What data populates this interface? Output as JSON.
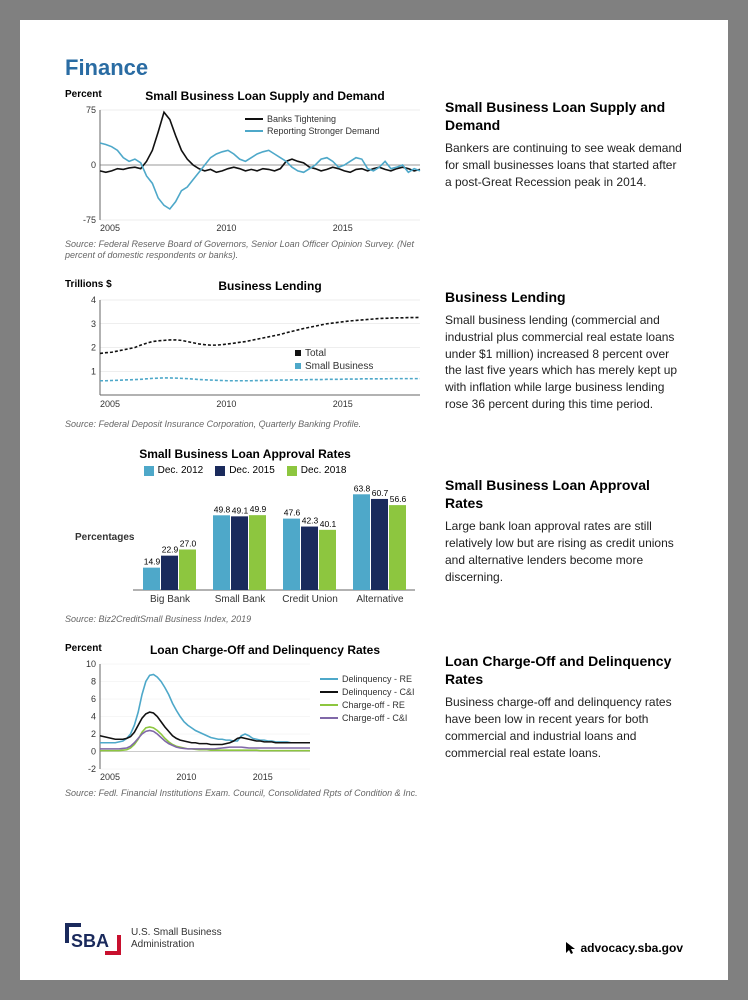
{
  "page_title": "Finance",
  "colors": {
    "title": "#2a6ca3",
    "black": "#111111",
    "blue": "#4ea8c9",
    "navy": "#1a2a5c",
    "green": "#8dc63f",
    "purple": "#8068a8",
    "grid": "#cccccc",
    "red": "#c8102e"
  },
  "chart1": {
    "title": "Small Business Loan Supply and Demand",
    "y_label": "Percent",
    "y_ticks": [
      -75,
      0,
      75
    ],
    "x_ticks": [
      "2005",
      "2010",
      "2015"
    ],
    "legend": [
      {
        "label": "Banks Tightening",
        "color": "#111111"
      },
      {
        "label": "Reporting Stronger Demand",
        "color": "#4ea8c9"
      }
    ],
    "banks": [
      -8,
      -10,
      -8,
      -5,
      -6,
      -4,
      -3,
      -5,
      5,
      20,
      45,
      72,
      62,
      40,
      20,
      8,
      0,
      -5,
      -8,
      -6,
      -10,
      -8,
      -5,
      -3,
      -5,
      -8,
      -6,
      -8,
      -5,
      -6,
      -8,
      -5,
      5,
      8,
      5,
      3,
      -3,
      -5,
      -8,
      -6,
      -3,
      -5,
      -8,
      -10,
      -6,
      -5,
      -8,
      -5,
      -3,
      -6,
      -8,
      -5,
      -3,
      -5,
      -8,
      -6
    ],
    "demand": [
      30,
      28,
      25,
      20,
      10,
      5,
      8,
      3,
      -15,
      -25,
      -45,
      -55,
      -60,
      -50,
      -35,
      -30,
      -20,
      -10,
      0,
      10,
      15,
      18,
      20,
      15,
      8,
      5,
      10,
      15,
      18,
      20,
      15,
      10,
      5,
      -3,
      -8,
      -10,
      -5,
      0,
      8,
      10,
      5,
      -3,
      0,
      5,
      10,
      8,
      -5,
      -8,
      -3,
      5,
      -5,
      -3,
      0,
      -10,
      -5,
      -8
    ],
    "source": "Source: Federal Reserve Board of Governors, Senior Loan Officer Opinion Survey. (Net percent of domestic respondents or banks).",
    "heading": "Small Business Loan Supply and Demand",
    "body": "Bankers are continuing to see weak demand for small businesses loans that started after a post-Great Recession peak in 2014."
  },
  "chart2": {
    "title": "Business Lending",
    "y_label": "Trillions $",
    "y_ticks": [
      1,
      2,
      3,
      4
    ],
    "x_ticks": [
      "2005",
      "2010",
      "2015"
    ],
    "legend": [
      {
        "label": "Total",
        "color": "#111111"
      },
      {
        "label": "Small Business",
        "color": "#4ea8c9"
      }
    ],
    "total": [
      1.75,
      1.78,
      1.8,
      1.85,
      1.9,
      1.95,
      2.0,
      2.1,
      2.18,
      2.25,
      2.28,
      2.3,
      2.32,
      2.32,
      2.3,
      2.25,
      2.2,
      2.15,
      2.12,
      2.1,
      2.1,
      2.12,
      2.15,
      2.18,
      2.22,
      2.25,
      2.3,
      2.35,
      2.4,
      2.45,
      2.5,
      2.55,
      2.62,
      2.68,
      2.74,
      2.8,
      2.85,
      2.9,
      2.95,
      3.0,
      3.03,
      3.06,
      3.09,
      3.12,
      3.14,
      3.16,
      3.18,
      3.2,
      3.22,
      3.23,
      3.24,
      3.25,
      3.25,
      3.26,
      3.26,
      3.27
    ],
    "small": [
      0.6,
      0.6,
      0.61,
      0.62,
      0.63,
      0.64,
      0.65,
      0.66,
      0.68,
      0.7,
      0.71,
      0.72,
      0.72,
      0.71,
      0.7,
      0.69,
      0.67,
      0.65,
      0.64,
      0.63,
      0.62,
      0.61,
      0.6,
      0.6,
      0.6,
      0.6,
      0.6,
      0.61,
      0.61,
      0.62,
      0.62,
      0.63,
      0.63,
      0.64,
      0.64,
      0.64,
      0.65,
      0.65,
      0.65,
      0.66,
      0.66,
      0.66,
      0.67,
      0.67,
      0.67,
      0.68,
      0.68,
      0.68,
      0.68,
      0.68,
      0.69,
      0.69,
      0.69,
      0.69,
      0.69,
      0.69
    ],
    "source": "Source: Federal Deposit Insurance Corporation, Quarterly Banking Profile.",
    "heading": "Business Lending",
    "body": "Small business lending (commercial and industrial plus commercial real estate loans under $1 million) increased 8 percent over the last five years which has merely kept up with inflation while large business lending rose 36 percent during this time period."
  },
  "chart3": {
    "title": "Small Business Loan Approval Rates",
    "y_label": "Percentages",
    "legend": [
      {
        "label": "Dec. 2012",
        "color": "#4ea8c9"
      },
      {
        "label": "Dec. 2015",
        "color": "#1a2a5c"
      },
      {
        "label": "Dec. 2018",
        "color": "#8dc63f"
      }
    ],
    "categories": [
      "Big Bank",
      "Small Bank",
      "Credit Union",
      "Alternative"
    ],
    "groups": [
      [
        14.9,
        22.9,
        27.0
      ],
      [
        49.8,
        49.1,
        49.9
      ],
      [
        47.6,
        42.3,
        40.1
      ],
      [
        63.8,
        60.7,
        56.6
      ]
    ],
    "ymax": 70,
    "source": "Source: Biz2CreditSmall Business Index, 2019",
    "heading": "Small Business Loan Approval Rates",
    "body": "Large bank loan approval rates are still relatively low but are rising as credit unions and alternative lenders become more discerning."
  },
  "chart4": {
    "title": "Loan Charge-Off and Delinquency Rates",
    "y_label": "Percent",
    "y_ticks": [
      -2,
      0,
      2,
      4,
      6,
      8,
      10
    ],
    "x_ticks": [
      "2005",
      "2010",
      "2015"
    ],
    "legend": [
      {
        "label": "Delinquency - RE",
        "color": "#4ea8c9"
      },
      {
        "label": "Delinquency - C&I",
        "color": "#111111"
      },
      {
        "label": "Charge-off - RE",
        "color": "#8dc63f"
      },
      {
        "label": "Charge-off - C&I",
        "color": "#8068a8"
      }
    ],
    "delin_re": [
      1.0,
      1.0,
      1.0,
      1.0,
      1.0,
      1.1,
      1.2,
      1.5,
      2.0,
      3.0,
      4.5,
      6.5,
      8.0,
      8.7,
      8.8,
      8.5,
      8.0,
      7.3,
      6.5,
      5.5,
      4.7,
      4.0,
      3.4,
      3.0,
      2.7,
      2.4,
      2.2,
      2.0,
      1.8,
      1.6,
      1.5,
      1.4,
      1.4,
      1.3,
      1.3,
      1.2,
      1.2,
      1.8,
      2.0,
      1.8,
      1.5,
      1.4,
      1.3,
      1.3,
      1.2,
      1.2,
      1.1,
      1.1,
      1.1,
      1.1,
      1.0,
      1.0,
      1.0,
      1.0,
      1.0,
      1.0
    ],
    "delin_ci": [
      1.8,
      1.7,
      1.6,
      1.5,
      1.4,
      1.4,
      1.4,
      1.5,
      1.7,
      2.2,
      3.0,
      3.8,
      4.3,
      4.5,
      4.4,
      4.0,
      3.4,
      2.8,
      2.3,
      1.8,
      1.5,
      1.3,
      1.2,
      1.1,
      1.0,
      1.0,
      0.9,
      0.9,
      0.9,
      0.8,
      0.8,
      0.8,
      0.8,
      0.9,
      1.0,
      1.2,
      1.5,
      1.6,
      1.5,
      1.4,
      1.3,
      1.2,
      1.2,
      1.1,
      1.1,
      1.1,
      1.0,
      1.0,
      1.0,
      1.0,
      1.0,
      1.0,
      1.0,
      1.0,
      1.0,
      1.0
    ],
    "charge_re": [
      0.1,
      0.1,
      0.1,
      0.1,
      0.1,
      0.1,
      0.15,
      0.2,
      0.4,
      0.8,
      1.4,
      2.2,
      2.7,
      2.8,
      2.7,
      2.4,
      2.0,
      1.5,
      1.1,
      0.8,
      0.6,
      0.5,
      0.4,
      0.3,
      0.3,
      0.25,
      0.2,
      0.2,
      0.2,
      0.15,
      0.15,
      0.15,
      0.15,
      0.15,
      0.15,
      0.15,
      0.15,
      0.15,
      0.15,
      0.15,
      0.15,
      0.15,
      0.1,
      0.1,
      0.1,
      0.1,
      0.1,
      0.1,
      0.1,
      0.1,
      0.1,
      0.1,
      0.1,
      0.1,
      0.1,
      0.1
    ],
    "charge_ci": [
      0.3,
      0.3,
      0.3,
      0.3,
      0.3,
      0.3,
      0.35,
      0.4,
      0.6,
      1.0,
      1.5,
      2.0,
      2.3,
      2.4,
      2.3,
      2.0,
      1.6,
      1.2,
      0.9,
      0.7,
      0.5,
      0.4,
      0.35,
      0.3,
      0.3,
      0.3,
      0.3,
      0.3,
      0.3,
      0.3,
      0.3,
      0.35,
      0.4,
      0.45,
      0.5,
      0.5,
      0.5,
      0.5,
      0.45,
      0.4,
      0.4,
      0.4,
      0.4,
      0.4,
      0.4,
      0.4,
      0.4,
      0.4,
      0.4,
      0.4,
      0.4,
      0.4,
      0.4,
      0.4,
      0.4,
      0.4
    ],
    "source": "Source: Fedl. Financial Institutions Exam. Council, Consolidated Rpts of Condition & Inc.",
    "heading": "Loan Charge-Off and Delinquency Rates",
    "body": "Business charge-off and delinquency rates have been low in recent years for both commercial and industrial loans and commercial real estate loans."
  },
  "footer": {
    "logo_text": "SBA",
    "org_line1": "U.S. Small Business",
    "org_line2": "Administration",
    "url": "advocacy.sba.gov"
  }
}
